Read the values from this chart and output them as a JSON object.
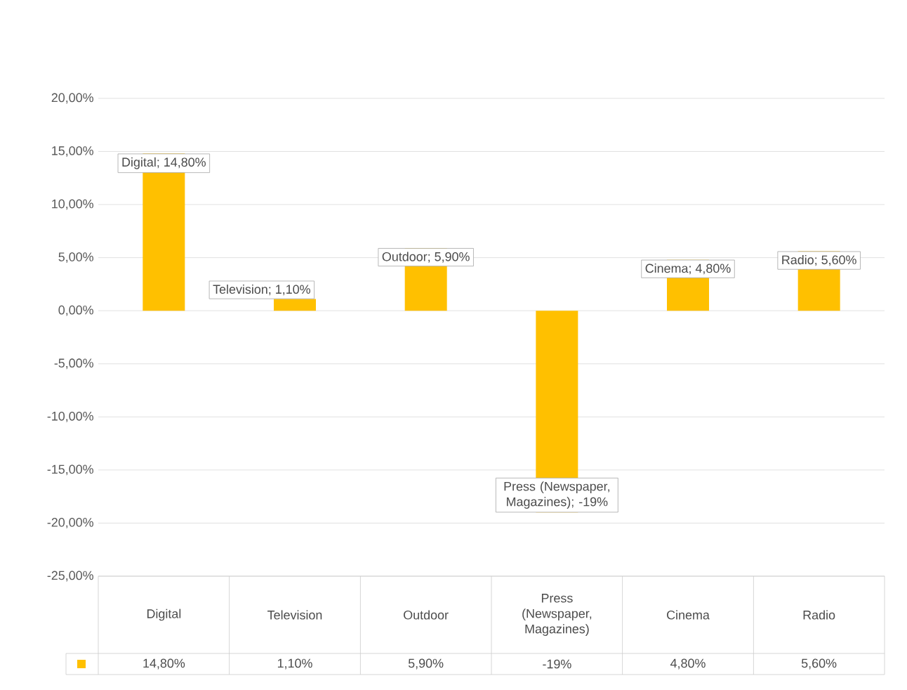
{
  "chart_data": {
    "type": "bar",
    "categories": [
      "Digital",
      "Television",
      "Outdoor",
      "Press (Newspaper, Magazines)",
      "Cinema",
      "Radio"
    ],
    "values": [
      14.8,
      1.1,
      5.9,
      -19,
      4.8,
      5.6
    ],
    "value_labels": [
      "14,80%",
      "1,10%",
      "5,90%",
      "-19%",
      "4,80%",
      "5,60%"
    ],
    "color": "#ffc000",
    "ylim": [
      -25,
      20
    ],
    "yticks": [
      {
        "value": -25,
        "label": "-25,00%"
      },
      {
        "value": -20,
        "label": "-20,00%"
      },
      {
        "value": -15,
        "label": "-15,00%"
      },
      {
        "value": -10,
        "label": "-10,00%"
      },
      {
        "value": -5,
        "label": "-5,00%"
      },
      {
        "value": 0,
        "label": "0,00%"
      },
      {
        "value": 5,
        "label": "5,00%"
      },
      {
        "value": 10,
        "label": "10,00%"
      },
      {
        "value": 15,
        "label": "15,00%"
      },
      {
        "value": 20,
        "label": "20,00%"
      }
    ],
    "grid": "y",
    "annotations": [
      {
        "text": "Digital; 14,80%",
        "x": "Digital",
        "y": 14.8
      },
      {
        "text": "Television; 1,10%",
        "x": "Television",
        "y": 1.1
      },
      {
        "text": "Outdoor; 5,90%",
        "x": "Outdoor",
        "y": 5.9
      },
      {
        "text": "Press (Newspaper, Magazines); -19%",
        "x": "Press (Newspaper, Magazines)",
        "y": -19
      },
      {
        "text": "Cinema; 4,80%",
        "x": "Cinema",
        "y": 4.8
      },
      {
        "text": "Radio; 5,60%",
        "x": "Radio",
        "y": 5.6
      }
    ]
  }
}
